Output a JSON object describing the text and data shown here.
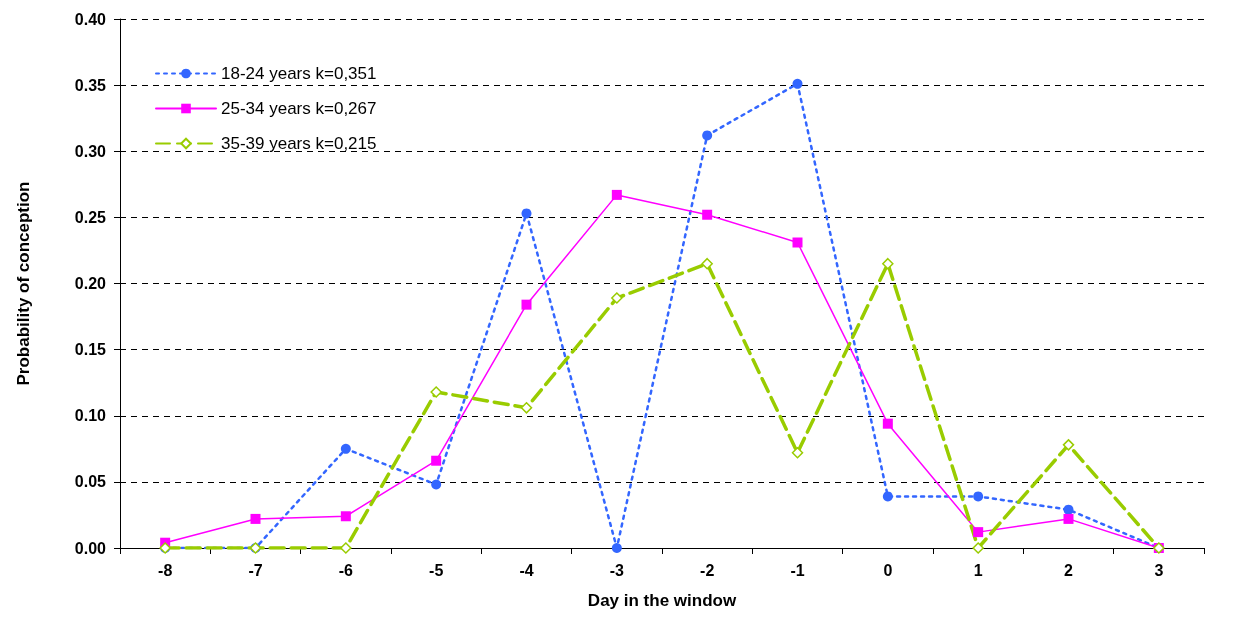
{
  "chart_data": {
    "type": "line",
    "xlabel": "Day in the window",
    "ylabel": "Probability of conception",
    "categories": [
      "-8",
      "-7",
      "-6",
      "-5",
      "-4",
      "-3",
      "-2",
      "-1",
      "0",
      "1",
      "2",
      "3"
    ],
    "series": [
      {
        "name": "18-24 years k=0,351",
        "color": "#3366ff",
        "marker": "circle",
        "line_style": "dotted",
        "values": [
          0,
          0,
          0.075,
          0.048,
          0.253,
          0,
          0.312,
          0.351,
          0.039,
          0.039,
          0.029,
          0
        ]
      },
      {
        "name": "25-34 years k=0,267",
        "color": "#ff00ff",
        "marker": "square",
        "line_style": "solid",
        "values": [
          0.004,
          0.022,
          0.024,
          0.066,
          0.184,
          0.267,
          0.252,
          0.231,
          0.094,
          0.012,
          0.022,
          0
        ]
      },
      {
        "name": "35-39 years k=0,215",
        "color": "#99cc00",
        "marker": "diamond",
        "line_style": "dashed",
        "values": [
          0,
          0,
          0,
          0.118,
          0.106,
          0.189,
          0.215,
          0.072,
          0.215,
          0,
          0.078,
          0
        ]
      }
    ],
    "ylim": [
      0,
      0.4
    ],
    "yticks": [
      {
        "value": 0,
        "label": "0.00"
      },
      {
        "value": 0.05,
        "label": "0.05"
      },
      {
        "value": 0.1,
        "label": "0.10"
      },
      {
        "value": 0.15,
        "label": "0.15"
      },
      {
        "value": 0.2,
        "label": "0.20"
      },
      {
        "value": 0.25,
        "label": "0.25"
      },
      {
        "value": 0.3,
        "label": "0.30"
      },
      {
        "value": 0.35,
        "label": "0.35"
      },
      {
        "value": 0.4,
        "label": "0.40"
      }
    ],
    "grid": "y",
    "legend": "top left"
  }
}
